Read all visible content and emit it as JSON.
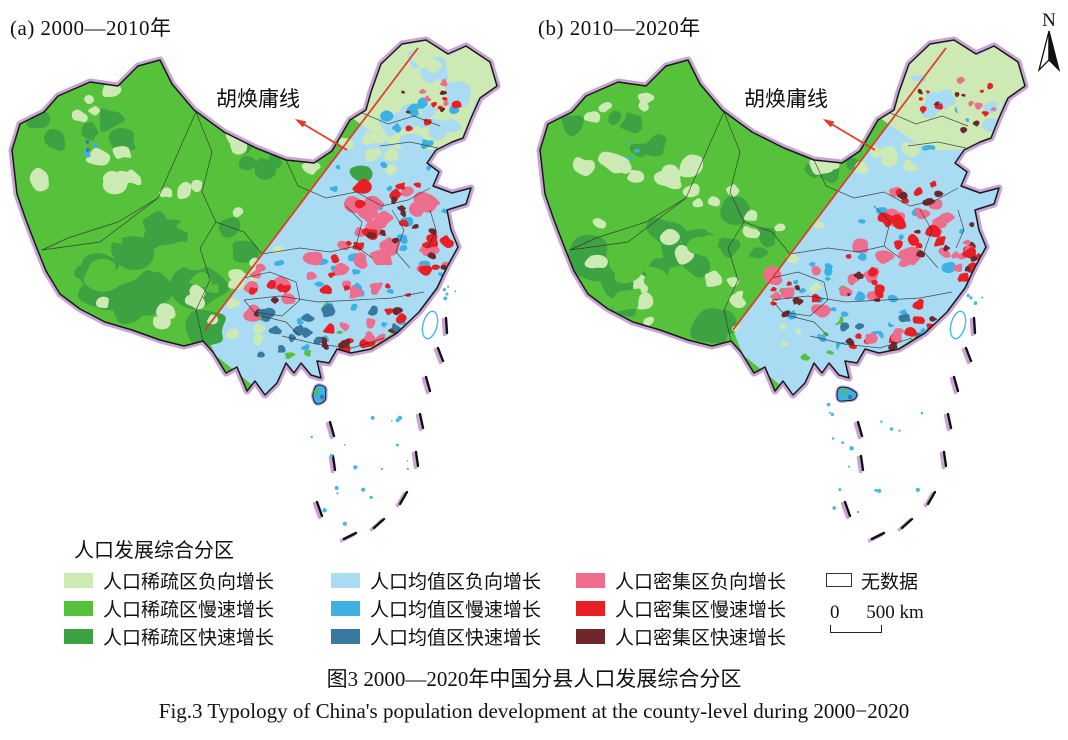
{
  "figure": {
    "north_label": "N",
    "panels": [
      {
        "id": "a",
        "title": "(a) 2000—2010年",
        "annotation": "胡焕庸线"
      },
      {
        "id": "b",
        "title": "(b) 2010—2020年",
        "annotation": "胡焕庸线"
      }
    ],
    "legend": {
      "title": "人口发展综合分区",
      "items": [
        {
          "label": "人口稀疏区负向增长",
          "color": "#cde9b4"
        },
        {
          "label": "人口稀疏区慢速增长",
          "color": "#56c13a"
        },
        {
          "label": "人口稀疏区快速增长",
          "color": "#3da342"
        },
        {
          "label": "人口均值区负向增长",
          "color": "#a9dcf2"
        },
        {
          "label": "人口均值区慢速增长",
          "color": "#3eb1e4"
        },
        {
          "label": "人口均值区快速增长",
          "color": "#38799f"
        },
        {
          "label": "人口密集区负向增长",
          "color": "#ed6d8d"
        },
        {
          "label": "人口密集区慢速增长",
          "color": "#e81f25"
        },
        {
          "label": "人口密集区快速增长",
          "color": "#6e272b"
        }
      ],
      "no_data": {
        "label": "无数据",
        "color": "#ffffff"
      },
      "scale_bar": {
        "zero": "0",
        "label": "500 km"
      }
    },
    "captions": {
      "zh": "图3  2000—2020年中国分县人口发展综合分区",
      "en": "Fig.3  Typology of China's population development at the county-level during 2000−2020"
    },
    "colors": {
      "border_purple": "#c9a2d6",
      "country_outline": "#1a1a1a",
      "province_line": "#2f2f2f",
      "hu_line": "#e6372b",
      "taiwan_outline": "#45b8e8",
      "sea_speck": "#45b8e8",
      "dash_line": "#111111"
    }
  }
}
